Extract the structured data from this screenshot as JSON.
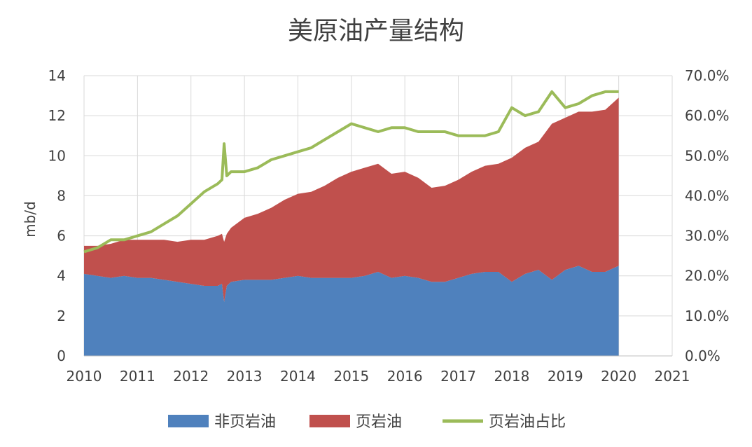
{
  "chart_data": {
    "type": "area",
    "title": "美原油产量结构",
    "ylabel": "mb/d",
    "y2label": "",
    "xlim": [
      2010,
      2021
    ],
    "ylim": [
      0,
      14
    ],
    "y2lim": [
      0,
      0.7
    ],
    "x_ticks": [
      "2010",
      "2011",
      "2012",
      "2013",
      "2014",
      "2015",
      "2016",
      "2017",
      "2018",
      "2019",
      "2020",
      "2021"
    ],
    "y_ticks": [
      "0",
      "2",
      "4",
      "6",
      "8",
      "10",
      "12",
      "14"
    ],
    "y2_ticks": [
      "0.0%",
      "10.0%",
      "20.0%",
      "30.0%",
      "40.0%",
      "50.0%",
      "60.0%",
      "70.0%"
    ],
    "grid": true,
    "legend_position": "bottom",
    "x": [
      2010.0,
      2010.25,
      2010.5,
      2010.75,
      2011.0,
      2011.25,
      2011.5,
      2011.75,
      2012.0,
      2012.25,
      2012.5,
      2012.58,
      2012.62,
      2012.67,
      2012.75,
      2013.0,
      2013.25,
      2013.5,
      2013.75,
      2014.0,
      2014.25,
      2014.5,
      2014.75,
      2015.0,
      2015.25,
      2015.5,
      2015.75,
      2016.0,
      2016.25,
      2016.5,
      2016.75,
      2017.0,
      2017.25,
      2017.5,
      2017.75,
      2018.0,
      2018.25,
      2018.5,
      2018.75,
      2019.0,
      2019.25,
      2019.5,
      2019.75,
      2020.0
    ],
    "series": [
      {
        "name": "非页岩油",
        "kind": "area",
        "color": "#4f81bd",
        "values": [
          4.1,
          4.0,
          3.9,
          4.0,
          3.9,
          3.9,
          3.8,
          3.7,
          3.6,
          3.5,
          3.5,
          3.6,
          2.7,
          3.5,
          3.7,
          3.8,
          3.8,
          3.8,
          3.9,
          4.0,
          3.9,
          3.9,
          3.9,
          3.9,
          4.0,
          4.2,
          3.9,
          4.0,
          3.9,
          3.7,
          3.7,
          3.9,
          4.1,
          4.2,
          4.2,
          3.7,
          4.1,
          4.3,
          3.8,
          4.3,
          4.5,
          4.2,
          4.2,
          4.5
        ]
      },
      {
        "name": "页岩油",
        "kind": "area",
        "color": "#c0504d",
        "values": [
          1.4,
          1.5,
          1.7,
          1.8,
          1.9,
          1.9,
          2.0,
          2.0,
          2.2,
          2.3,
          2.5,
          2.5,
          3.0,
          2.6,
          2.7,
          3.1,
          3.3,
          3.6,
          3.9,
          4.1,
          4.3,
          4.6,
          5.0,
          5.3,
          5.4,
          5.4,
          5.2,
          5.2,
          5.0,
          4.7,
          4.8,
          4.9,
          5.1,
          5.3,
          5.4,
          6.2,
          6.3,
          6.4,
          7.8,
          7.6,
          7.7,
          8.0,
          8.1,
          8.4
        ]
      },
      {
        "name": "页岩油占比",
        "kind": "line",
        "axis": "right",
        "color": "#9bbb59",
        "values": [
          0.26,
          0.27,
          0.29,
          0.29,
          0.3,
          0.31,
          0.33,
          0.35,
          0.38,
          0.41,
          0.43,
          0.44,
          0.53,
          0.45,
          0.46,
          0.46,
          0.47,
          0.49,
          0.5,
          0.51,
          0.52,
          0.54,
          0.56,
          0.58,
          0.57,
          0.56,
          0.57,
          0.57,
          0.56,
          0.56,
          0.56,
          0.55,
          0.55,
          0.55,
          0.56,
          0.62,
          0.6,
          0.61,
          0.66,
          0.62,
          0.63,
          0.65,
          0.66,
          0.66
        ]
      }
    ]
  }
}
